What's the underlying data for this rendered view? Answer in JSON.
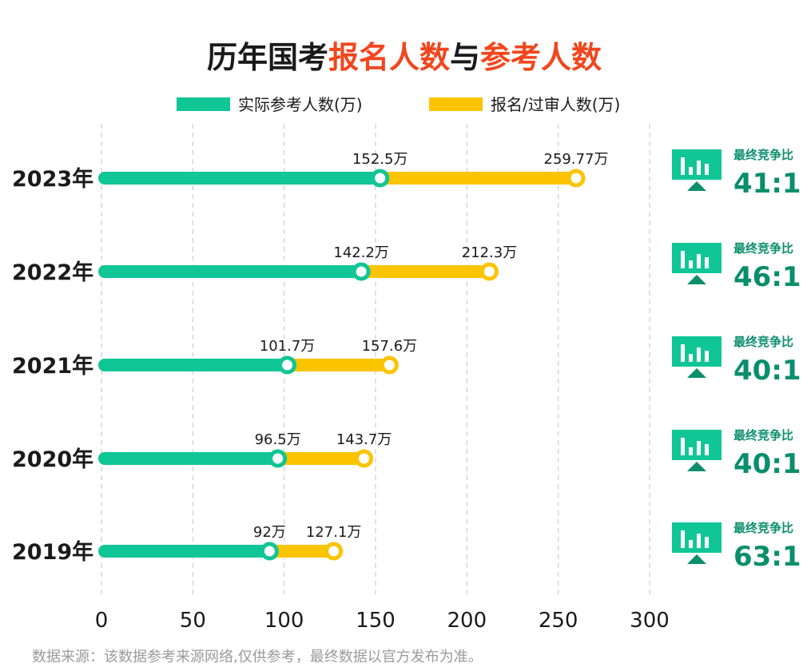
{
  "chart_data": {
    "type": "bar",
    "title": [
      "历年国考",
      "报名人数",
      "与",
      "参考人数"
    ],
    "categories": [
      "2023年",
      "2022年",
      "2021年",
      "2020年",
      "2019年"
    ],
    "series": [
      {
        "name": "实际参考人数(万)",
        "color": "#10c596",
        "values": [
          152.5,
          142.2,
          101.7,
          96.5,
          92
        ],
        "labels": [
          "152.5万",
          "142.2万",
          "101.7万",
          "96.5万",
          "92万"
        ]
      },
      {
        "name": "报名/过审人数(万)",
        "color": "#fbc400",
        "values": [
          259.77,
          212.3,
          157.6,
          143.7,
          127.1
        ],
        "labels": [
          "259.77万",
          "212.3万",
          "157.6万",
          "143.7万",
          "127.1万"
        ]
      }
    ],
    "ratio_label": "最终竞争比",
    "ratios": [
      "41:1",
      "46:1",
      "40:1",
      "40:1",
      "63:1"
    ],
    "ratio_color": "#0a8e6c",
    "icon": "presentation-chart-icon",
    "xlim": [
      0,
      300
    ],
    "x_ticks": [
      "0",
      "50",
      "100",
      "150",
      "200",
      "250",
      "300"
    ],
    "grid": true,
    "legend_position": "top"
  },
  "footer": {
    "source": "数据来源：该数据参考来源网络,仅供参考，最终数据以官方发布为准。"
  }
}
